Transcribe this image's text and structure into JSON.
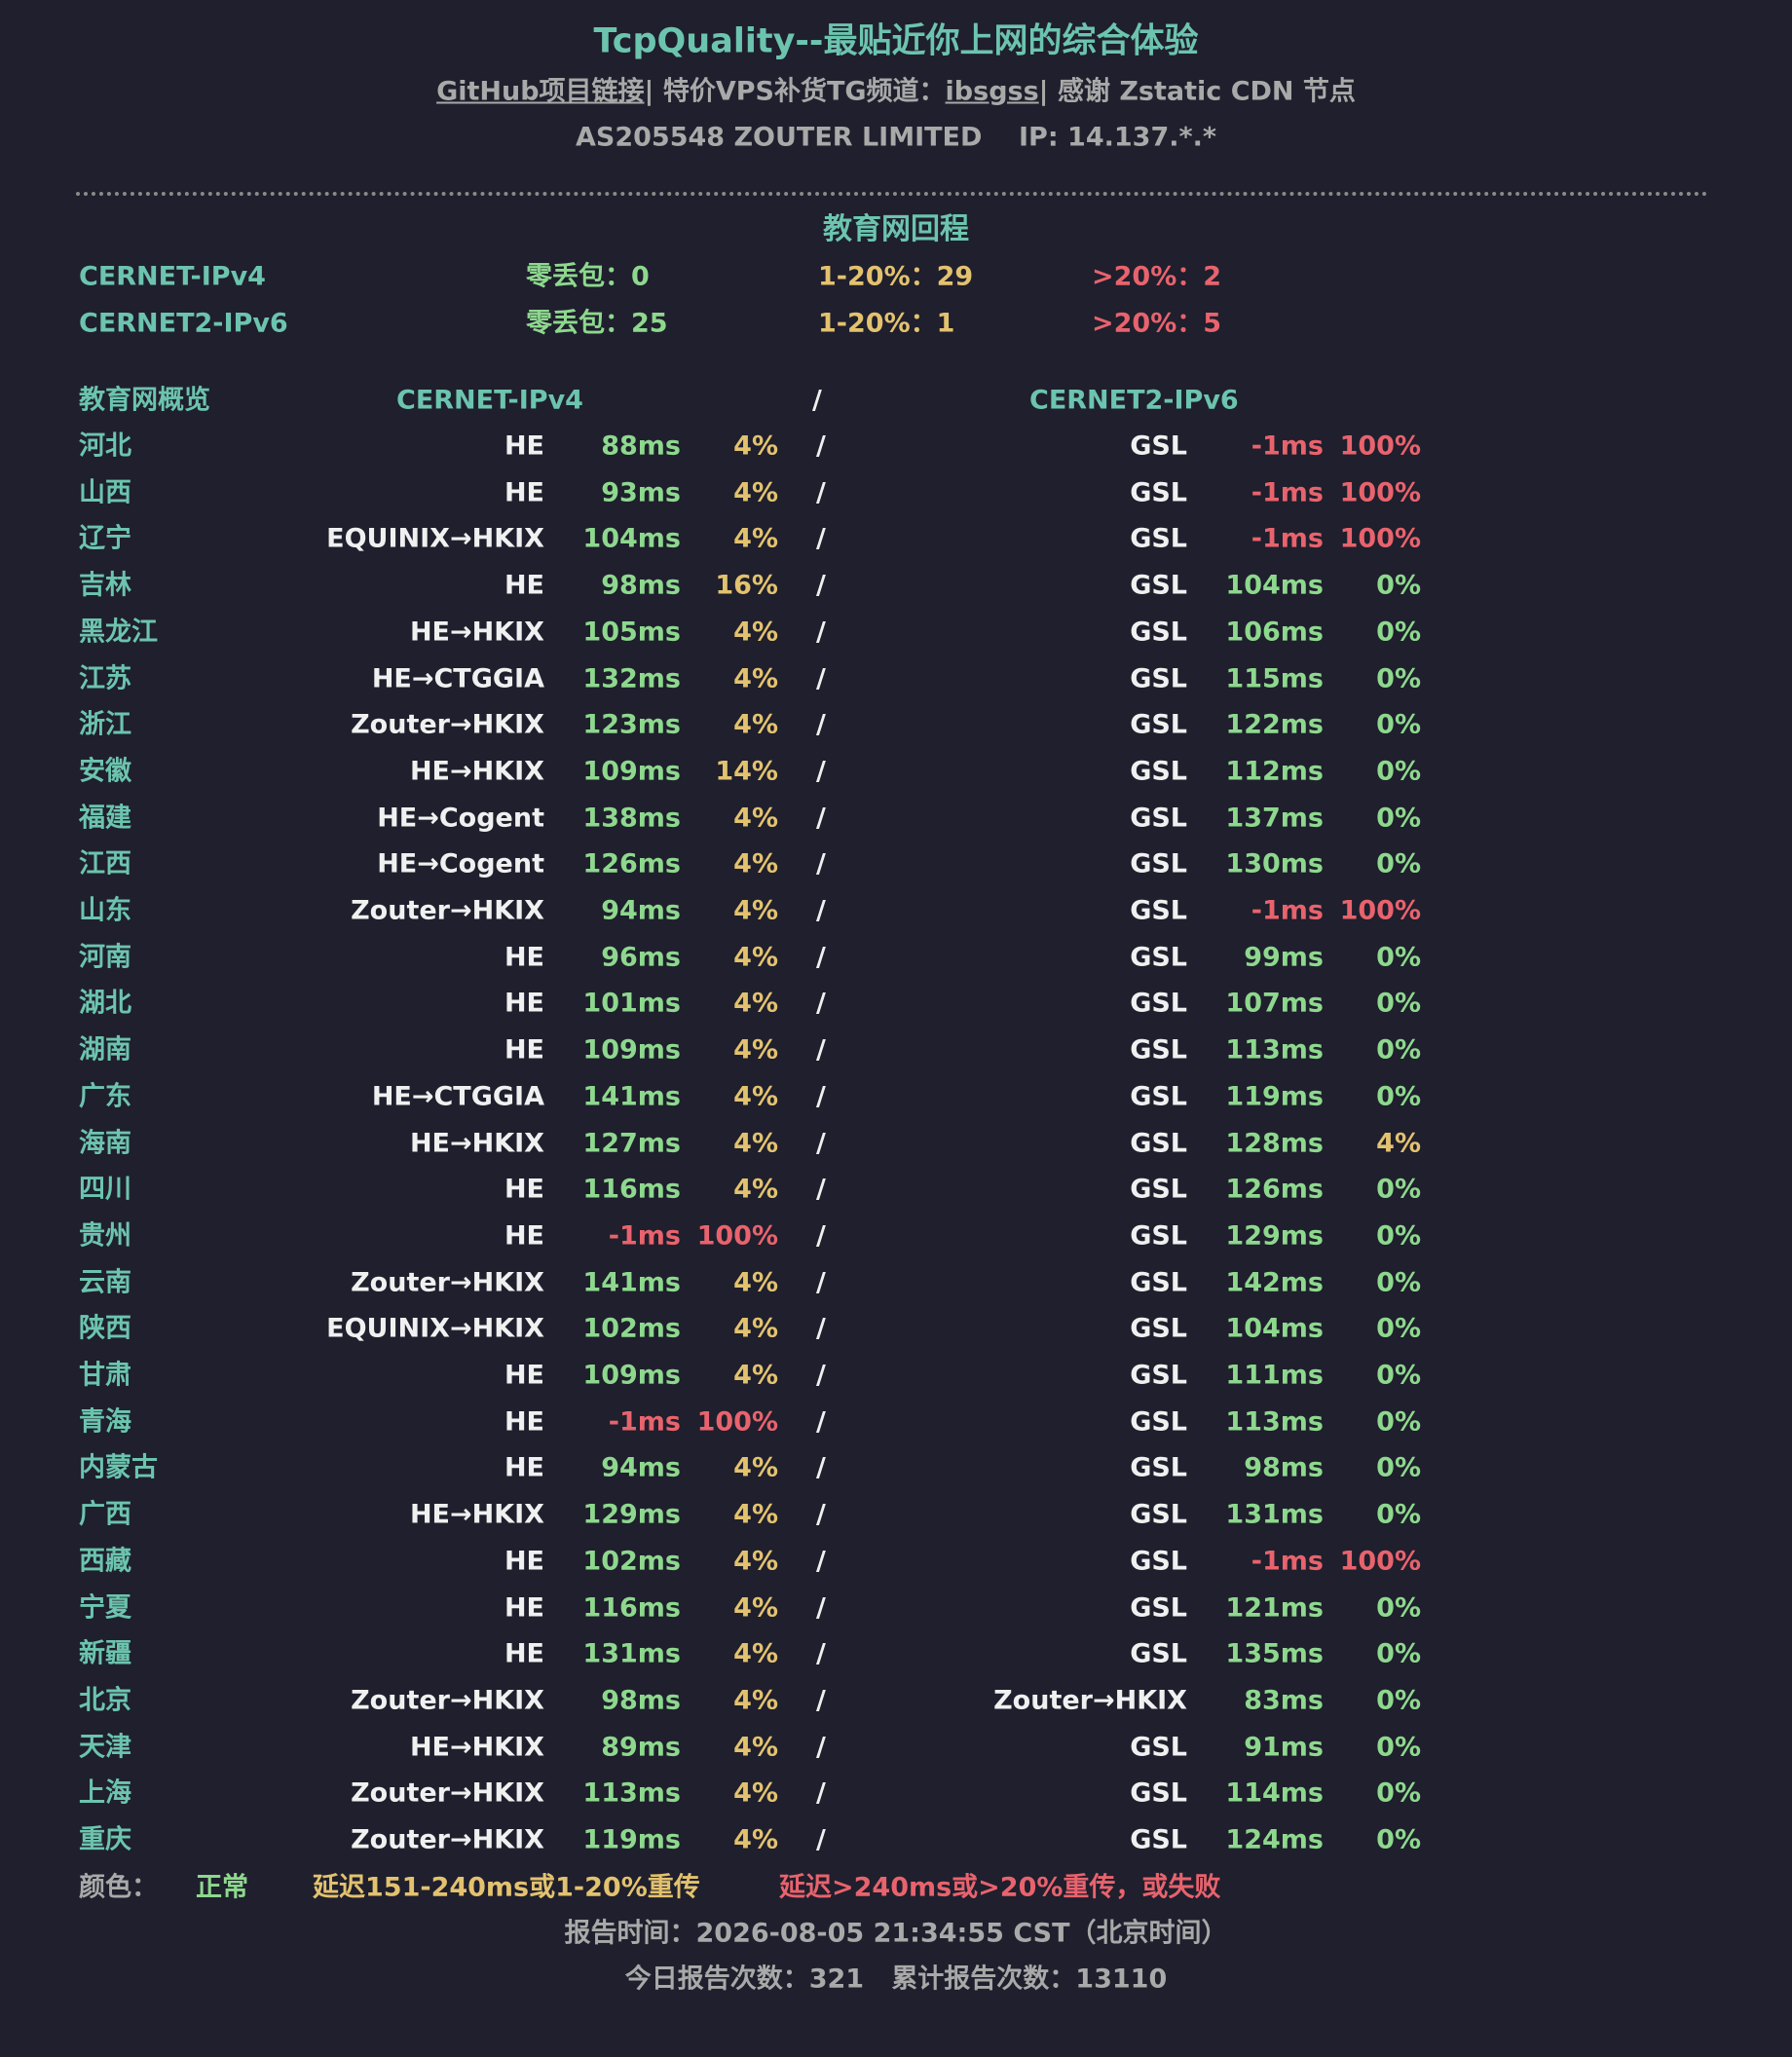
{
  "header": {
    "title": "TcpQuality--最贴近你上网的综合体验",
    "links": {
      "github": "GitHub项目链接",
      "sep": "|",
      "tg_label": "特价VPS补货TG频道：",
      "tg": "ibsgss",
      "thanks": "感谢 Zstatic CDN 节点"
    },
    "asn": "AS205548 ZOUTER LIMITED",
    "ip": "IP: 14.137.*.*"
  },
  "section": {
    "title": "教育网回程",
    "summary": [
      {
        "name": "CERNET-IPv4",
        "zero": "零丢包：0",
        "mid": "1-20%：29",
        "high": ">20%：2"
      },
      {
        "name": "CERNET2-IPv6",
        "zero": "零丢包：25",
        "mid": "1-20%：1",
        "high": ">20%：5"
      }
    ],
    "colors": {
      "zero": "#8ed88e",
      "mid": "#e3c26f",
      "high": "#e8636d",
      "name": "#6cc4ae"
    }
  },
  "table": {
    "header": [
      "教育网概览",
      "CERNET-IPv4",
      "/",
      "CERNET2-IPv6"
    ],
    "separator": "/",
    "rows": [
      {
        "province": "河北",
        "ipv4": [
          "HE",
          "88ms",
          "4%"
        ],
        "ipv4_colors": [
          "#8ed88e",
          "#e3c26f"
        ],
        "ipv6": [
          "GSL",
          "-1ms",
          "100%"
        ],
        "ipv6_colors": [
          "#e8636d",
          "#e8636d"
        ]
      },
      {
        "province": "山西",
        "ipv4": [
          "HE",
          "93ms",
          "4%"
        ],
        "ipv4_colors": [
          "#8ed88e",
          "#e3c26f"
        ],
        "ipv6": [
          "GSL",
          "-1ms",
          "100%"
        ],
        "ipv6_colors": [
          "#e8636d",
          "#e8636d"
        ]
      },
      {
        "province": "辽宁",
        "ipv4": [
          "EQUINIX→HKIX",
          "104ms",
          "4%"
        ],
        "ipv4_colors": [
          "#8ed88e",
          "#e3c26f"
        ],
        "ipv6": [
          "GSL",
          "-1ms",
          "100%"
        ],
        "ipv6_colors": [
          "#e8636d",
          "#e8636d"
        ]
      },
      {
        "province": "吉林",
        "ipv4": [
          "HE",
          "98ms",
          "16%"
        ],
        "ipv4_colors": [
          "#8ed88e",
          "#e3c26f"
        ],
        "ipv6": [
          "GSL",
          "104ms",
          "0%"
        ],
        "ipv6_colors": [
          "#8ed88e",
          "#8ed88e"
        ]
      },
      {
        "province": "黑龙江",
        "ipv4": [
          "HE→HKIX",
          "105ms",
          "4%"
        ],
        "ipv4_colors": [
          "#8ed88e",
          "#e3c26f"
        ],
        "ipv6": [
          "GSL",
          "106ms",
          "0%"
        ],
        "ipv6_colors": [
          "#8ed88e",
          "#8ed88e"
        ]
      },
      {
        "province": "江苏",
        "ipv4": [
          "HE→CTGGIA",
          "132ms",
          "4%"
        ],
        "ipv4_colors": [
          "#8ed88e",
          "#e3c26f"
        ],
        "ipv6": [
          "GSL",
          "115ms",
          "0%"
        ],
        "ipv6_colors": [
          "#8ed88e",
          "#8ed88e"
        ]
      },
      {
        "province": "浙江",
        "ipv4": [
          "Zouter→HKIX",
          "123ms",
          "4%"
        ],
        "ipv4_colors": [
          "#8ed88e",
          "#e3c26f"
        ],
        "ipv6": [
          "GSL",
          "122ms",
          "0%"
        ],
        "ipv6_colors": [
          "#8ed88e",
          "#8ed88e"
        ]
      },
      {
        "province": "安徽",
        "ipv4": [
          "HE→HKIX",
          "109ms",
          "14%"
        ],
        "ipv4_colors": [
          "#8ed88e",
          "#e3c26f"
        ],
        "ipv6": [
          "GSL",
          "112ms",
          "0%"
        ],
        "ipv6_colors": [
          "#8ed88e",
          "#8ed88e"
        ]
      },
      {
        "province": "福建",
        "ipv4": [
          "HE→Cogent",
          "138ms",
          "4%"
        ],
        "ipv4_colors": [
          "#8ed88e",
          "#e3c26f"
        ],
        "ipv6": [
          "GSL",
          "137ms",
          "0%"
        ],
        "ipv6_colors": [
          "#8ed88e",
          "#8ed88e"
        ]
      },
      {
        "province": "江西",
        "ipv4": [
          "HE→Cogent",
          "126ms",
          "4%"
        ],
        "ipv4_colors": [
          "#8ed88e",
          "#e3c26f"
        ],
        "ipv6": [
          "GSL",
          "130ms",
          "0%"
        ],
        "ipv6_colors": [
          "#8ed88e",
          "#8ed88e"
        ]
      },
      {
        "province": "山东",
        "ipv4": [
          "Zouter→HKIX",
          "94ms",
          "4%"
        ],
        "ipv4_colors": [
          "#8ed88e",
          "#e3c26f"
        ],
        "ipv6": [
          "GSL",
          "-1ms",
          "100%"
        ],
        "ipv6_colors": [
          "#e8636d",
          "#e8636d"
        ]
      },
      {
        "province": "河南",
        "ipv4": [
          "HE",
          "96ms",
          "4%"
        ],
        "ipv4_colors": [
          "#8ed88e",
          "#e3c26f"
        ],
        "ipv6": [
          "GSL",
          "99ms",
          "0%"
        ],
        "ipv6_colors": [
          "#8ed88e",
          "#8ed88e"
        ]
      },
      {
        "province": "湖北",
        "ipv4": [
          "HE",
          "101ms",
          "4%"
        ],
        "ipv4_colors": [
          "#8ed88e",
          "#e3c26f"
        ],
        "ipv6": [
          "GSL",
          "107ms",
          "0%"
        ],
        "ipv6_colors": [
          "#8ed88e",
          "#8ed88e"
        ]
      },
      {
        "province": "湖南",
        "ipv4": [
          "HE",
          "109ms",
          "4%"
        ],
        "ipv4_colors": [
          "#8ed88e",
          "#e3c26f"
        ],
        "ipv6": [
          "GSL",
          "113ms",
          "0%"
        ],
        "ipv6_colors": [
          "#8ed88e",
          "#8ed88e"
        ]
      },
      {
        "province": "广东",
        "ipv4": [
          "HE→CTGGIA",
          "141ms",
          "4%"
        ],
        "ipv4_colors": [
          "#8ed88e",
          "#e3c26f"
        ],
        "ipv6": [
          "GSL",
          "119ms",
          "0%"
        ],
        "ipv6_colors": [
          "#8ed88e",
          "#8ed88e"
        ]
      },
      {
        "province": "海南",
        "ipv4": [
          "HE→HKIX",
          "127ms",
          "4%"
        ],
        "ipv4_colors": [
          "#8ed88e",
          "#e3c26f"
        ],
        "ipv6": [
          "GSL",
          "128ms",
          "4%"
        ],
        "ipv6_colors": [
          "#8ed88e",
          "#e3c26f"
        ]
      },
      {
        "province": "四川",
        "ipv4": [
          "HE",
          "116ms",
          "4%"
        ],
        "ipv4_colors": [
          "#8ed88e",
          "#e3c26f"
        ],
        "ipv6": [
          "GSL",
          "126ms",
          "0%"
        ],
        "ipv6_colors": [
          "#8ed88e",
          "#8ed88e"
        ]
      },
      {
        "province": "贵州",
        "ipv4": [
          "HE",
          "-1ms",
          "100%"
        ],
        "ipv4_colors": [
          "#e8636d",
          "#e8636d"
        ],
        "ipv6": [
          "GSL",
          "129ms",
          "0%"
        ],
        "ipv6_colors": [
          "#8ed88e",
          "#8ed88e"
        ]
      },
      {
        "province": "云南",
        "ipv4": [
          "Zouter→HKIX",
          "141ms",
          "4%"
        ],
        "ipv4_colors": [
          "#8ed88e",
          "#e3c26f"
        ],
        "ipv6": [
          "GSL",
          "142ms",
          "0%"
        ],
        "ipv6_colors": [
          "#8ed88e",
          "#8ed88e"
        ]
      },
      {
        "province": "陕西",
        "ipv4": [
          "EQUINIX→HKIX",
          "102ms",
          "4%"
        ],
        "ipv4_colors": [
          "#8ed88e",
          "#e3c26f"
        ],
        "ipv6": [
          "GSL",
          "104ms",
          "0%"
        ],
        "ipv6_colors": [
          "#8ed88e",
          "#8ed88e"
        ]
      },
      {
        "province": "甘肃",
        "ipv4": [
          "HE",
          "109ms",
          "4%"
        ],
        "ipv4_colors": [
          "#8ed88e",
          "#e3c26f"
        ],
        "ipv6": [
          "GSL",
          "111ms",
          "0%"
        ],
        "ipv6_colors": [
          "#8ed88e",
          "#8ed88e"
        ]
      },
      {
        "province": "青海",
        "ipv4": [
          "HE",
          "-1ms",
          "100%"
        ],
        "ipv4_colors": [
          "#e8636d",
          "#e8636d"
        ],
        "ipv6": [
          "GSL",
          "113ms",
          "0%"
        ],
        "ipv6_colors": [
          "#8ed88e",
          "#8ed88e"
        ]
      },
      {
        "province": "内蒙古",
        "ipv4": [
          "HE",
          "94ms",
          "4%"
        ],
        "ipv4_colors": [
          "#8ed88e",
          "#e3c26f"
        ],
        "ipv6": [
          "GSL",
          "98ms",
          "0%"
        ],
        "ipv6_colors": [
          "#8ed88e",
          "#8ed88e"
        ]
      },
      {
        "province": "广西",
        "ipv4": [
          "HE→HKIX",
          "129ms",
          "4%"
        ],
        "ipv4_colors": [
          "#8ed88e",
          "#e3c26f"
        ],
        "ipv6": [
          "GSL",
          "131ms",
          "0%"
        ],
        "ipv6_colors": [
          "#8ed88e",
          "#8ed88e"
        ]
      },
      {
        "province": "西藏",
        "ipv4": [
          "HE",
          "102ms",
          "4%"
        ],
        "ipv4_colors": [
          "#8ed88e",
          "#e3c26f"
        ],
        "ipv6": [
          "GSL",
          "-1ms",
          "100%"
        ],
        "ipv6_colors": [
          "#e8636d",
          "#e8636d"
        ]
      },
      {
        "province": "宁夏",
        "ipv4": [
          "HE",
          "116ms",
          "4%"
        ],
        "ipv4_colors": [
          "#8ed88e",
          "#e3c26f"
        ],
        "ipv6": [
          "GSL",
          "121ms",
          "0%"
        ],
        "ipv6_colors": [
          "#8ed88e",
          "#8ed88e"
        ]
      },
      {
        "province": "新疆",
        "ipv4": [
          "HE",
          "131ms",
          "4%"
        ],
        "ipv4_colors": [
          "#8ed88e",
          "#e3c26f"
        ],
        "ipv6": [
          "GSL",
          "135ms",
          "0%"
        ],
        "ipv6_colors": [
          "#8ed88e",
          "#8ed88e"
        ]
      },
      {
        "province": "北京",
        "ipv4": [
          "Zouter→HKIX",
          "98ms",
          "4%"
        ],
        "ipv4_colors": [
          "#8ed88e",
          "#e3c26f"
        ],
        "ipv6": [
          "Zouter→HKIX",
          "83ms",
          "0%"
        ],
        "ipv6_colors": [
          "#8ed88e",
          "#8ed88e"
        ]
      },
      {
        "province": "天津",
        "ipv4": [
          "HE→HKIX",
          "89ms",
          "4%"
        ],
        "ipv4_colors": [
          "#8ed88e",
          "#e3c26f"
        ],
        "ipv6": [
          "GSL",
          "91ms",
          "0%"
        ],
        "ipv6_colors": [
          "#8ed88e",
          "#8ed88e"
        ]
      },
      {
        "province": "上海",
        "ipv4": [
          "Zouter→HKIX",
          "113ms",
          "4%"
        ],
        "ipv4_colors": [
          "#8ed88e",
          "#e3c26f"
        ],
        "ipv6": [
          "GSL",
          "114ms",
          "0%"
        ],
        "ipv6_colors": [
          "#8ed88e",
          "#8ed88e"
        ]
      },
      {
        "province": "重庆",
        "ipv4": [
          "Zouter→HKIX",
          "119ms",
          "4%"
        ],
        "ipv4_colors": [
          "#8ed88e",
          "#e3c26f"
        ],
        "ipv6": [
          "GSL",
          "124ms",
          "0%"
        ],
        "ipv6_colors": [
          "#8ed88e",
          "#8ed88e"
        ]
      }
    ]
  },
  "legend": {
    "label": "颜色：",
    "items": [
      {
        "text": "正常",
        "color": "#8ed88e"
      },
      {
        "text": "延迟151-240ms或1-20%重传",
        "color": "#e3c26f"
      },
      {
        "text": "延迟>240ms或>20%重传，或失败",
        "color": "#e8636d"
      }
    ]
  },
  "footer": {
    "report_time": "报告时间：2026-08-05 21:34:55 CST（北京时间）",
    "today": "今日报告次数：321",
    "total": "累计报告次数：13110"
  }
}
